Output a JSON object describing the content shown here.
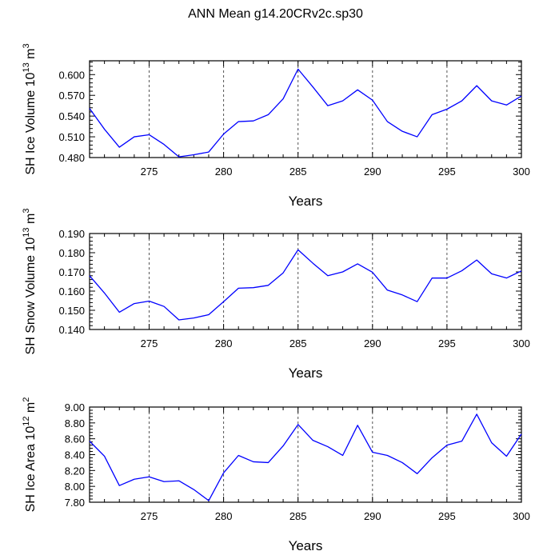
{
  "title": "ANN Mean g14.20CRv2c.sp30",
  "line_color": "#0000ff",
  "chart_data": [
    {
      "type": "line",
      "ylabel_main": "SH Ice Volume 10",
      "ylabel_exp": "13",
      "ylabel_unit": " m",
      "ylabel_unit_exp": "3",
      "xlabel": "Years",
      "xlim": [
        271,
        300
      ],
      "ylim": [
        0.48,
        0.62
      ],
      "yticks": [
        0.48,
        0.51,
        0.54,
        0.57,
        0.6
      ],
      "ytick_labels": [
        "0.480",
        "0.510",
        "0.540",
        "0.570",
        "0.600"
      ],
      "xticks": [
        275,
        280,
        285,
        290,
        295,
        300
      ],
      "xtick_labels": [
        "275",
        "280",
        "285",
        "290",
        "295",
        "300"
      ],
      "x": [
        271,
        272,
        273,
        274,
        275,
        276,
        277,
        278,
        279,
        280,
        281,
        282,
        283,
        284,
        285,
        286,
        287,
        288,
        289,
        290,
        291,
        292,
        293,
        294,
        295,
        296,
        297,
        298,
        299,
        300
      ],
      "y": [
        0.551,
        0.521,
        0.495,
        0.51,
        0.513,
        0.499,
        0.481,
        0.484,
        0.488,
        0.514,
        0.532,
        0.533,
        0.542,
        0.565,
        0.608,
        0.582,
        0.555,
        0.562,
        0.578,
        0.563,
        0.532,
        0.518,
        0.51,
        0.542,
        0.55,
        0.562,
        0.584,
        0.562,
        0.556,
        0.569
      ]
    },
    {
      "type": "line",
      "ylabel_main": "SH Snow Volume 10",
      "ylabel_exp": "13",
      "ylabel_unit": " m",
      "ylabel_unit_exp": "3",
      "xlabel": "Years",
      "xlim": [
        271,
        300
      ],
      "ylim": [
        0.14,
        0.19
      ],
      "yticks": [
        0.14,
        0.15,
        0.16,
        0.17,
        0.18,
        0.19
      ],
      "ytick_labels": [
        "0.140",
        "0.150",
        "0.160",
        "0.170",
        "0.180",
        "0.190"
      ],
      "xticks": [
        275,
        280,
        285,
        290,
        295,
        300
      ],
      "xtick_labels": [
        "275",
        "280",
        "285",
        "290",
        "295",
        "300"
      ],
      "x": [
        271,
        272,
        273,
        274,
        275,
        276,
        277,
        278,
        279,
        280,
        281,
        282,
        283,
        284,
        285,
        286,
        287,
        288,
        289,
        290,
        291,
        292,
        293,
        294,
        295,
        296,
        297,
        298,
        299,
        300
      ],
      "y": [
        0.168,
        0.159,
        0.149,
        0.1535,
        0.1548,
        0.152,
        0.145,
        0.146,
        0.1477,
        0.1545,
        0.1615,
        0.1618,
        0.163,
        0.1695,
        0.1815,
        0.1745,
        0.168,
        0.17,
        0.1742,
        0.1698,
        0.1605,
        0.158,
        0.1545,
        0.1668,
        0.1668,
        0.1706,
        0.1762,
        0.169,
        0.1668,
        0.1705
      ]
    },
    {
      "type": "line",
      "ylabel_main": "SH Ice Area 10",
      "ylabel_exp": "12",
      "ylabel_unit": " m",
      "ylabel_unit_exp": "2",
      "xlabel": "Years",
      "xlim": [
        271,
        300
      ],
      "ylim": [
        7.8,
        9.0
      ],
      "yticks": [
        7.8,
        8.0,
        8.2,
        8.4,
        8.6,
        8.8,
        9.0
      ],
      "ytick_labels": [
        "7.80",
        "8.00",
        "8.20",
        "8.40",
        "8.60",
        "8.80",
        "9.00"
      ],
      "xticks": [
        275,
        280,
        285,
        290,
        295,
        300
      ],
      "xtick_labels": [
        "275",
        "280",
        "285",
        "290",
        "295",
        "300"
      ],
      "x": [
        271,
        272,
        273,
        274,
        275,
        276,
        277,
        278,
        279,
        280,
        281,
        282,
        283,
        284,
        285,
        286,
        287,
        288,
        289,
        290,
        291,
        292,
        293,
        294,
        295,
        296,
        297,
        298,
        299,
        300
      ],
      "y": [
        8.57,
        8.38,
        8.01,
        8.09,
        8.12,
        8.06,
        8.07,
        7.96,
        7.82,
        8.17,
        8.39,
        8.31,
        8.3,
        8.51,
        8.78,
        8.58,
        8.5,
        8.39,
        8.77,
        8.43,
        8.39,
        8.3,
        8.16,
        8.36,
        8.52,
        8.57,
        8.91,
        8.55,
        8.38,
        8.66
      ]
    }
  ]
}
